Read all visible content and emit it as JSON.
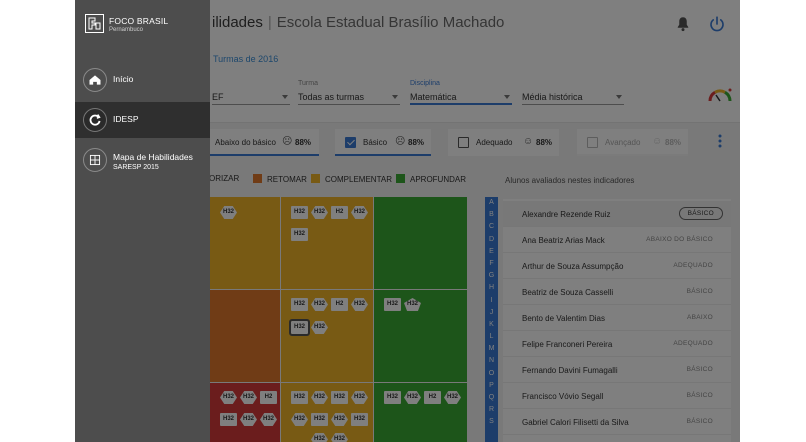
{
  "header": {
    "title_tail": "ilidades",
    "separator": "|",
    "school": "Escola Estadual Brasílio Machado",
    "icons": [
      "bell-icon",
      "power-icon"
    ]
  },
  "crumb": "Turmas de 2016",
  "filters": [
    {
      "label": "",
      "value": "EF"
    },
    {
      "label": "Turma",
      "value": "Todas as turmas"
    },
    {
      "label": "Disciplina",
      "value": "Matemática"
    },
    {
      "label": "",
      "value": "Média histórica"
    }
  ],
  "levels": [
    {
      "name": "Abaixo do básico",
      "pct": "88%",
      "checked": false
    },
    {
      "name": "Básico",
      "pct": "88%",
      "checked": true
    },
    {
      "name": "Adequado",
      "pct": "88%",
      "checked": false
    },
    {
      "name": "Avançado",
      "pct": "88%",
      "checked": false
    }
  ],
  "legend": [
    {
      "label": "RIORIZAR",
      "color": "#d73b3b"
    },
    {
      "label": "RETOMAR",
      "color": "#e0792d"
    },
    {
      "label": "COMPLEMENTAR",
      "color": "#f0b429"
    },
    {
      "label": "APROFUNDAR",
      "color": "#3aaa35"
    }
  ],
  "students_caption": "Alunos avaliados nestes indicadores",
  "skill_codes": {
    "h32": "H32",
    "h2": "H2"
  },
  "alphabet": [
    "A",
    "B",
    "C",
    "D",
    "E",
    "F",
    "G",
    "H",
    "I",
    "J",
    "K",
    "L",
    "M",
    "N",
    "O",
    "P",
    "Q",
    "R",
    "S"
  ],
  "students": [
    {
      "name": "Alexandre Rezende Ruiz",
      "status": "BÁSICO"
    },
    {
      "name": "Ana Beatriz Arias Mack",
      "status": "ABAIXO DO BÁSICO"
    },
    {
      "name": "Arthur de Souza Assumpção",
      "status": "ADEQUADO"
    },
    {
      "name": "Beatriz de Souza Casselli",
      "status": "BÁSICO"
    },
    {
      "name": "Bento de Valentim Dias",
      "status": "ABAIXO"
    },
    {
      "name": "Felipe Franconeri Pereira",
      "status": "ADEQUADO"
    },
    {
      "name": "Fernando Davini Fumagalli",
      "status": "BÁSICO"
    },
    {
      "name": "Francisco Vóvio Segall",
      "status": "BÁSICO"
    },
    {
      "name": "Gabriel Calori Filisetti da Silva",
      "status": "BÁSICO"
    }
  ],
  "drawer": {
    "brand_name": "FOCO BRASIL",
    "brand_sub": "Pernambuco",
    "items": [
      {
        "label": "Início",
        "icon": "home-icon"
      },
      {
        "label": "IDESP",
        "icon": "refresh-icon"
      },
      {
        "label": "Mapa de Habilidades",
        "label2": "SARESP 2015",
        "icon": "grid-icon"
      }
    ]
  },
  "colors": {
    "accent": "#3a7bd5",
    "red": "#d73b3b",
    "orange": "#e0792d",
    "yellow": "#f0b429",
    "green": "#3aaa35"
  }
}
